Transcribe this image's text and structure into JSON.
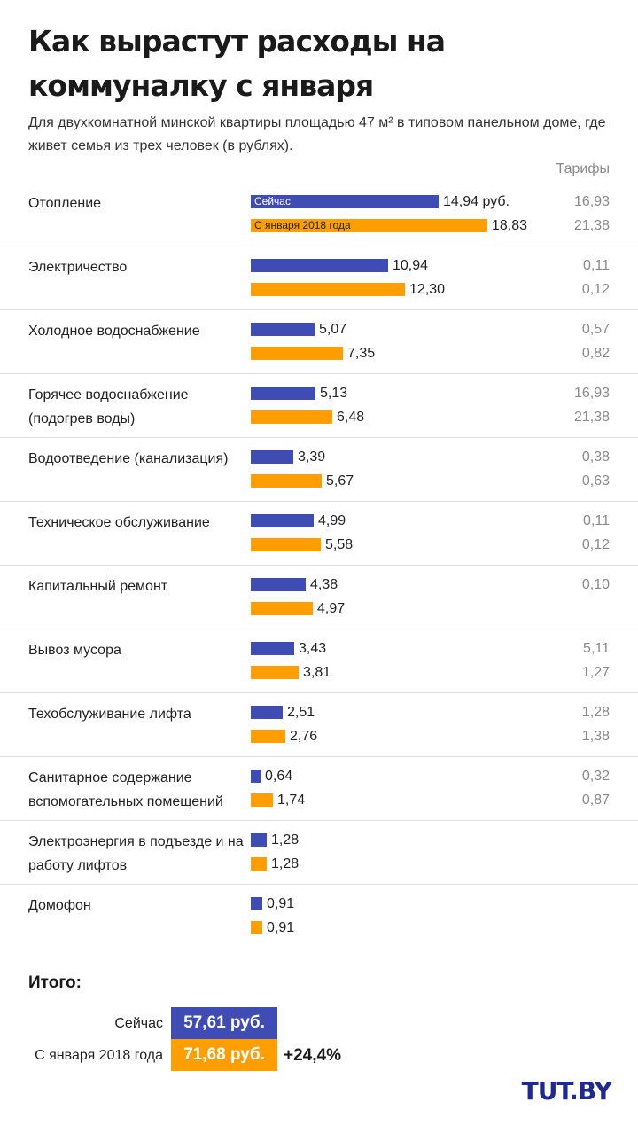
{
  "title": "Как вырастут расходы на коммуналку с января",
  "subtitle": "Для двухкомнатной минской квартиры площадью 47 м² в типовом панельном доме, где живет семья из трех человек (в рублях).",
  "tariffs_header": "Тарифы",
  "colors": {
    "now": "#3f4cb4",
    "next": "#ff9e00"
  },
  "chart_data": {
    "type": "bar",
    "orientation": "horizontal",
    "series_names": [
      "Сейчас",
      "С января 2018 года"
    ],
    "unit": "руб.",
    "xlim": [
      0,
      18.83
    ],
    "rows": [
      {
        "label": "Отопление",
        "now": 14.94,
        "now_text": "14,94 руб.",
        "next": 18.83,
        "next_text": "18,83",
        "tariff_now": "16,93",
        "tariff_next": "21,38",
        "now_tag": "Сейчас",
        "next_tag": "С января 2018 года"
      },
      {
        "label": "Электричество",
        "now": 10.94,
        "now_text": "10,94",
        "next": 12.3,
        "next_text": "12,30",
        "tariff_now": "0,11",
        "tariff_next": "0,12"
      },
      {
        "label": "Холодное водоснабжение",
        "now": 5.07,
        "now_text": "5,07",
        "next": 7.35,
        "next_text": "7,35",
        "tariff_now": "0,57",
        "tariff_next": "0,82"
      },
      {
        "label": "Горячее водоснабжение (подогрев воды)",
        "now": 5.13,
        "now_text": "5,13",
        "next": 6.48,
        "next_text": "6,48",
        "tariff_now": "16,93",
        "tariff_next": "21,38"
      },
      {
        "label": "Водоотведение (канализация)",
        "now": 3.39,
        "now_text": "3,39",
        "next": 5.67,
        "next_text": "5,67",
        "tariff_now": "0,38",
        "tariff_next": "0,63"
      },
      {
        "label": "Техническое обслуживание",
        "now": 4.99,
        "now_text": "4,99",
        "next": 5.58,
        "next_text": "5,58",
        "tariff_now": "0,11",
        "tariff_next": "0,12"
      },
      {
        "label": "Капитальный ремонт",
        "now": 4.38,
        "now_text": "4,38",
        "next": 4.97,
        "next_text": "4,97",
        "tariff_now": "0,10",
        "tariff_next": ""
      },
      {
        "label": "Вывоз мусора",
        "now": 3.43,
        "now_text": "3,43",
        "next": 3.81,
        "next_text": "3,81",
        "tariff_now": "5,11",
        "tariff_next": "1,27"
      },
      {
        "label": "Техобслуживание лифта",
        "now": 2.51,
        "now_text": "2,51",
        "next": 2.76,
        "next_text": "2,76",
        "tariff_now": "1,28",
        "tariff_next": "1,38"
      },
      {
        "label": "Санитарное содержание вспомогательных помещений",
        "now": 0.64,
        "now_text": "0,64",
        "next": 1.74,
        "next_text": "1,74",
        "tariff_now": "0,32",
        "tariff_next": "0,87"
      },
      {
        "label": "Электроэнергия в подъезде и на работу лифтов",
        "now": 1.28,
        "now_text": "1,28",
        "next": 1.28,
        "next_text": "1,28",
        "tariff_now": "",
        "tariff_next": ""
      },
      {
        "label": "Домофон",
        "now": 0.91,
        "now_text": "0,91",
        "next": 0.91,
        "next_text": "0,91",
        "tariff_now": "",
        "tariff_next": ""
      }
    ]
  },
  "totals": {
    "title": "Итого:",
    "now_label": "Сейчас",
    "now_value": "57,61 руб.",
    "next_label": "С января 2018 года",
    "next_value": "71,68 руб.",
    "change": "+24,4%"
  },
  "logo": "TUT.BY"
}
